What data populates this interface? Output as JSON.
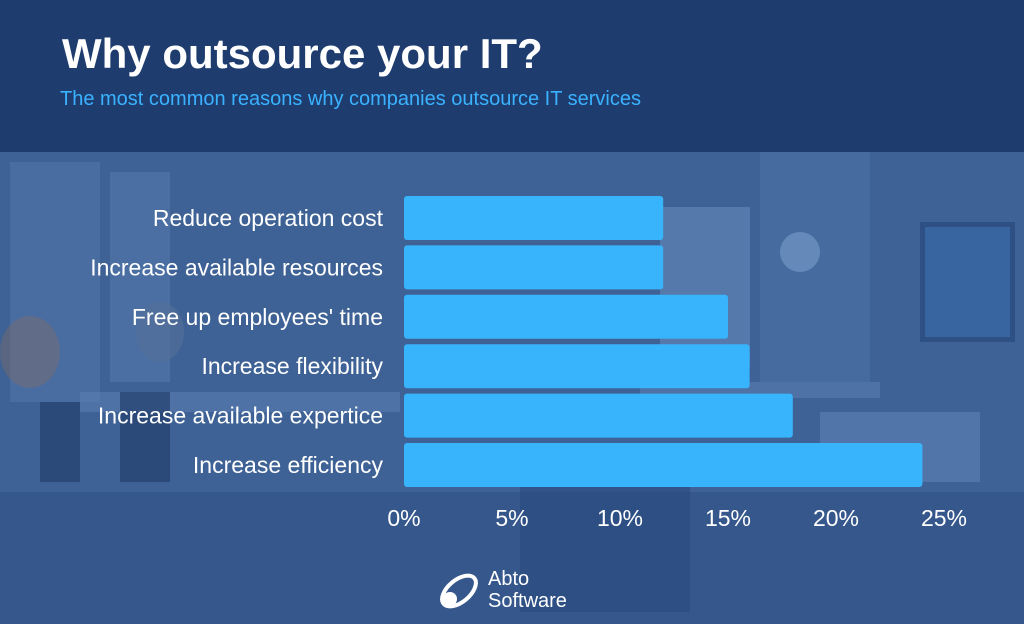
{
  "header": {
    "title": "Why outsource your IT?",
    "subtitle": "The most common reasons why companies outsource IT services"
  },
  "chart_data": {
    "type": "bar",
    "orientation": "horizontal",
    "categories": [
      "Reduce operation cost",
      "Increase available resources",
      "Free up employees' time",
      "Increase flexibility",
      "Increase available expertice",
      "Increase efficiency"
    ],
    "values": [
      12,
      12,
      15,
      16,
      18,
      24
    ],
    "xlim": [
      0,
      25
    ],
    "xticks": [
      "0%",
      "5%",
      "10%",
      "15%",
      "20%",
      "25%"
    ],
    "grid": false,
    "bar_color": "#38b4fd"
  },
  "logo": {
    "line1": "Abto",
    "line2": "Software",
    "icon": "abto-logo-icon"
  },
  "colors": {
    "header_bg": "#1e3d6e",
    "subtitle": "#3ab2ff",
    "bar": "#38b4fd",
    "text": "#ffffff"
  }
}
